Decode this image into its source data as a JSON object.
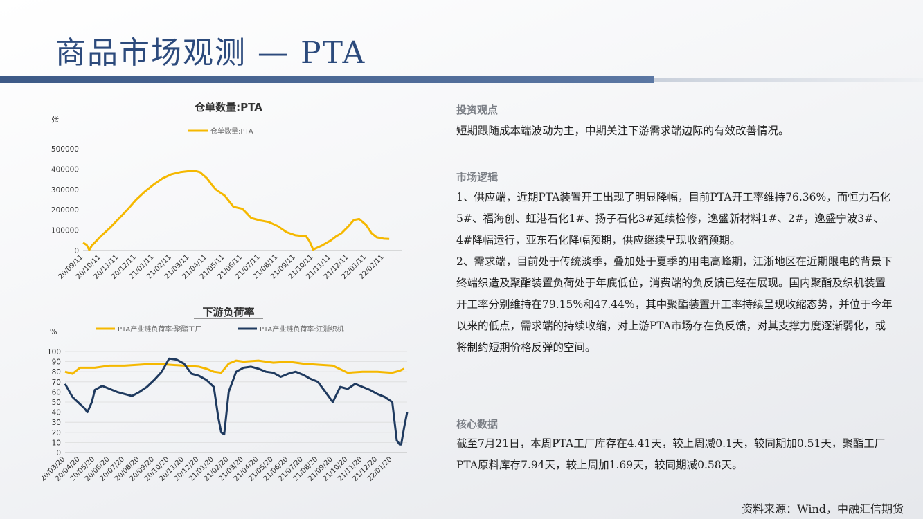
{
  "page": {
    "title": "商品市场观测 — PTA",
    "source": "资料来源：Wind，中融汇信期货"
  },
  "colors": {
    "accent": "#2c4a7c",
    "yellow": "#f5b800",
    "navy": "#1f3a5f"
  },
  "right_panel": {
    "view_title": "投资观点",
    "view_text": "短期跟随成本端波动为主，中期关注下游需求端边际的有效改善情况。",
    "logic_title": "市场逻辑",
    "logic_text_1": "1、供应端，近期PTA装置开工出现了明显降幅，目前PTA开工率维持76.36%，而恒力石化5#、福海创、虹港石化1#、扬子石化3#延续检修，逸盛新材料1#、2#，逸盛宁波3#、4#降幅运行，亚东石化降幅预期，供应继续呈现收缩预期。",
    "logic_text_2": "2、需求端，目前处于传统淡季，叠加处于夏季的用电高峰期，江浙地区在近期限电的背景下终端织造及聚酯装置负荷处于年底低位，消费端的负反馈已经在展现。国内聚酯及织机装置开工率分别维持在79.15%和47.44%，其中聚酯装置开工率持续呈现收缩态势，并位于今年以来的低点，需求端的持续收缩，对上游PTA市场存在负反馈，对其支撑力度逐渐弱化，或将制约短期价格反弹的空间。",
    "core_title": "核心数据",
    "core_text": "截至7月21日，本周PTA工厂库存在4.41天，较上周减0.1天，较同期加0.51天，聚酯工厂PTA原料库存7.94天，较上周加1.69天，较同期减0.58天。"
  },
  "chart_data": [
    {
      "type": "line",
      "title": "仓单数量:PTA",
      "ylabel": "张",
      "ylim": [
        0,
        500000
      ],
      "yticks": [
        "500000",
        "400000",
        "300000",
        "200000",
        "100000",
        "0"
      ],
      "xticks": [
        "20/09/11",
        "20/10/11",
        "20/11/11",
        "20/12/11",
        "21/01/11",
        "21/02/11",
        "21/03/11",
        "21/04/11",
        "21/05/11",
        "21/06/11",
        "21/07/11",
        "21/08/11",
        "21/09/11",
        "21/10/11",
        "21/11/11",
        "21/12/11",
        "22/01/11",
        "22/02/11"
      ],
      "legend_position": "top",
      "series": [
        {
          "name": "仓单数量:PTA",
          "color": "#f5b800",
          "x": [
            0,
            0.2,
            0.35,
            0.5,
            1,
            1.5,
            2,
            2.5,
            3,
            3.5,
            4,
            4.5,
            5,
            5.5,
            6,
            6.3,
            6.6,
            7,
            7.3,
            7.5,
            8,
            8.5,
            9,
            9.5,
            10,
            10.5,
            11,
            11.5,
            12,
            12.3,
            12.6,
            12.8,
            13,
            13.5,
            14,
            14.3,
            14.6,
            15,
            15.3,
            15.6,
            16,
            16.3,
            16.6,
            17,
            17.3
          ],
          "y": [
            38000,
            28000,
            3000,
            25000,
            70000,
            110000,
            155000,
            200000,
            250000,
            290000,
            325000,
            355000,
            375000,
            385000,
            390000,
            392000,
            385000,
            355000,
            320000,
            300000,
            270000,
            215000,
            205000,
            160000,
            148000,
            140000,
            120000,
            90000,
            75000,
            72000,
            70000,
            45000,
            5000,
            25000,
            50000,
            70000,
            85000,
            120000,
            150000,
            155000,
            125000,
            85000,
            65000,
            58000,
            57000
          ]
        }
      ]
    },
    {
      "type": "line",
      "title": "下游负荷率",
      "ylabel": "%",
      "ylim": [
        0,
        100
      ],
      "yticks": [
        "100",
        "90",
        "80",
        "70",
        "60",
        "50",
        "40",
        "30",
        "20",
        "10",
        "0"
      ],
      "xticks": [
        "20/03/20",
        "20/04/20",
        "20/05/20",
        "20/06/20",
        "20/07/20",
        "20/08/20",
        "20/09/20",
        "20/10/20",
        "20/11/20",
        "20/12/20",
        "21/01/20",
        "21/02/20",
        "21/03/20",
        "21/04/20",
        "21/05/20",
        "21/06/20",
        "21/07/20",
        "21/08/20",
        "21/09/20",
        "21/10/20",
        "21/11/20",
        "21/12/20",
        "22/01/20"
      ],
      "legend_position": "top",
      "series": [
        {
          "name": "PTA产业链负荷率:聚酯工厂",
          "color": "#f5b800",
          "x": [
            0,
            0.5,
            1,
            2,
            3,
            4,
            5,
            6,
            7,
            8,
            9,
            9.5,
            10,
            10.5,
            11,
            11.5,
            12,
            13,
            14,
            15,
            16,
            17,
            18,
            19,
            20,
            21,
            22,
            22.5,
            22.8
          ],
          "y": [
            80,
            78,
            84,
            84,
            86,
            86,
            87,
            88,
            87,
            86,
            85,
            83,
            80,
            79,
            88,
            91,
            90,
            91,
            89,
            90,
            88,
            87,
            86,
            79,
            80,
            80,
            79,
            81,
            83
          ]
        },
        {
          "name": "PTA产业链负荷率:江浙织机",
          "color": "#1f3a5f",
          "x": [
            0,
            0.5,
            1,
            1.3,
            1.5,
            1.8,
            2,
            2.5,
            3,
            3.5,
            4,
            4.5,
            5,
            5.5,
            6,
            6.5,
            7,
            7.5,
            8,
            8.5,
            9,
            9.5,
            10,
            10.3,
            10.5,
            10.7,
            11,
            11.5,
            12,
            12.5,
            13,
            13.5,
            14,
            14.5,
            15,
            15.5,
            16,
            16.5,
            17,
            17.5,
            18,
            18.5,
            19,
            19.5,
            20,
            20.5,
            21,
            21.5,
            22,
            22.3,
            22.5,
            22.6,
            22.8,
            23
          ],
          "y": [
            68,
            55,
            48,
            44,
            40,
            50,
            62,
            66,
            63,
            60,
            58,
            56,
            60,
            65,
            72,
            80,
            93,
            92,
            88,
            78,
            76,
            72,
            65,
            35,
            20,
            18,
            60,
            80,
            84,
            85,
            83,
            80,
            79,
            75,
            78,
            80,
            77,
            73,
            70,
            60,
            50,
            65,
            63,
            68,
            65,
            62,
            58,
            55,
            50,
            12,
            8,
            8,
            25,
            40
          ]
        }
      ]
    }
  ]
}
